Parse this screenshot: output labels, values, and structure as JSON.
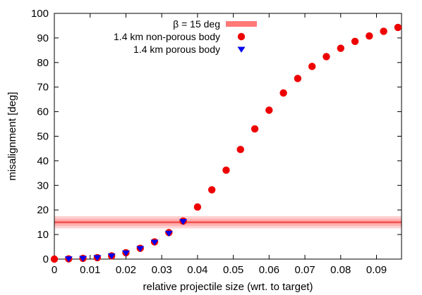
{
  "chart_data": {
    "type": "scatter",
    "xlabel": "relative projectile size (wrt. to target)",
    "ylabel": "misalignment [deg]",
    "xlim": [
      0,
      0.097
    ],
    "ylim": [
      0,
      100
    ],
    "x_ticks": [
      0,
      0.01,
      0.02,
      0.03,
      0.04,
      0.05,
      0.06,
      0.07,
      0.08,
      0.09
    ],
    "x_tick_labels": [
      "0",
      "0.01",
      "0.02",
      "0.03",
      "0.04",
      "0.05",
      "0.06",
      "0.07",
      "0.08",
      "0.09"
    ],
    "y_ticks": [
      0,
      10,
      20,
      30,
      40,
      50,
      60,
      70,
      80,
      90,
      100
    ],
    "y_tick_labels": [
      "0",
      "10",
      "20",
      "30",
      "40",
      "50",
      "60",
      "70",
      "80",
      "90",
      "100"
    ],
    "grid": false,
    "legend_position": "top-right",
    "band": {
      "name": "β = 15 deg",
      "value": 15,
      "bands": [
        [
          12.5,
          17.5
        ],
        [
          13.5,
          16.5
        ],
        [
          14.3,
          15.7
        ]
      ],
      "color": "#ff6a6a"
    },
    "series": [
      {
        "name": "1.4 km non-porous body",
        "marker": "circle",
        "color": "#ee0000",
        "x": [
          0,
          0.004,
          0.008,
          0.012,
          0.016,
          0.02,
          0.024,
          0.028,
          0.032,
          0.036,
          0.04,
          0.044,
          0.048,
          0.052,
          0.056,
          0.06,
          0.064,
          0.068,
          0.072,
          0.076,
          0.08,
          0.084,
          0.088,
          0.092,
          0.096
        ],
        "y": [
          0.0,
          0.1,
          0.3,
          0.6,
          1.3,
          2.6,
          4.4,
          7.0,
          10.8,
          15.5,
          21.2,
          28.2,
          36.2,
          44.6,
          53.0,
          60.6,
          67.6,
          73.5,
          78.4,
          82.4,
          85.8,
          88.6,
          90.8,
          92.7,
          94.3
        ]
      },
      {
        "name": "1.4 km porous body",
        "marker": "triangle-down",
        "color": "#0000ee",
        "x": [
          0.004,
          0.008,
          0.012,
          0.016,
          0.02,
          0.024,
          0.028,
          0.032,
          0.036
        ],
        "y": [
          0.1,
          0.3,
          0.6,
          1.3,
          2.5,
          4.3,
          6.9,
          10.5,
          15.3
        ]
      }
    ]
  }
}
